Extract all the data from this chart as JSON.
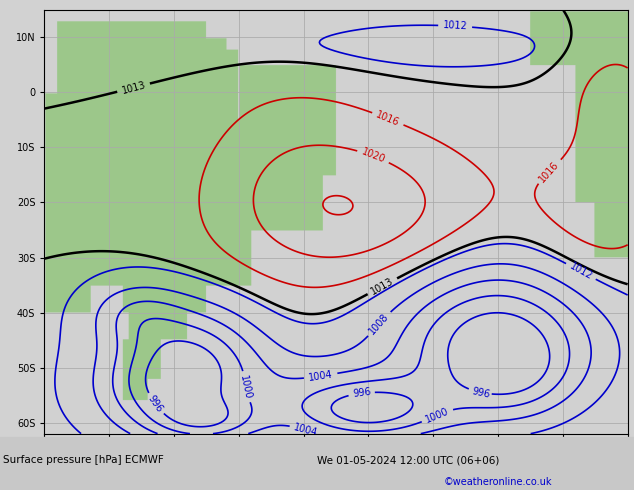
{
  "title_left": "Surface pressure [hPa] ECMWF",
  "title_right": "We 01-05-2024 12:00 UTC (06+06)",
  "credit": "©weatheronline.co.uk",
  "figsize": [
    6.34,
    4.9
  ],
  "dpi": 100,
  "ocean_color": "#d2d2d2",
  "land_color": "#9dc88d",
  "grid_color": "#aaaaaa",
  "grid_alpha": 0.8,
  "contour_blue": "#0000cc",
  "contour_black": "#000000",
  "contour_red": "#cc0000",
  "bottom_bar_color": "#c8c8c8",
  "bottom_text_color": "#000000",
  "credit_color": "#0000cc",
  "lon_min": -80,
  "lon_max": 10,
  "lat_min": -62,
  "lat_max": 15
}
